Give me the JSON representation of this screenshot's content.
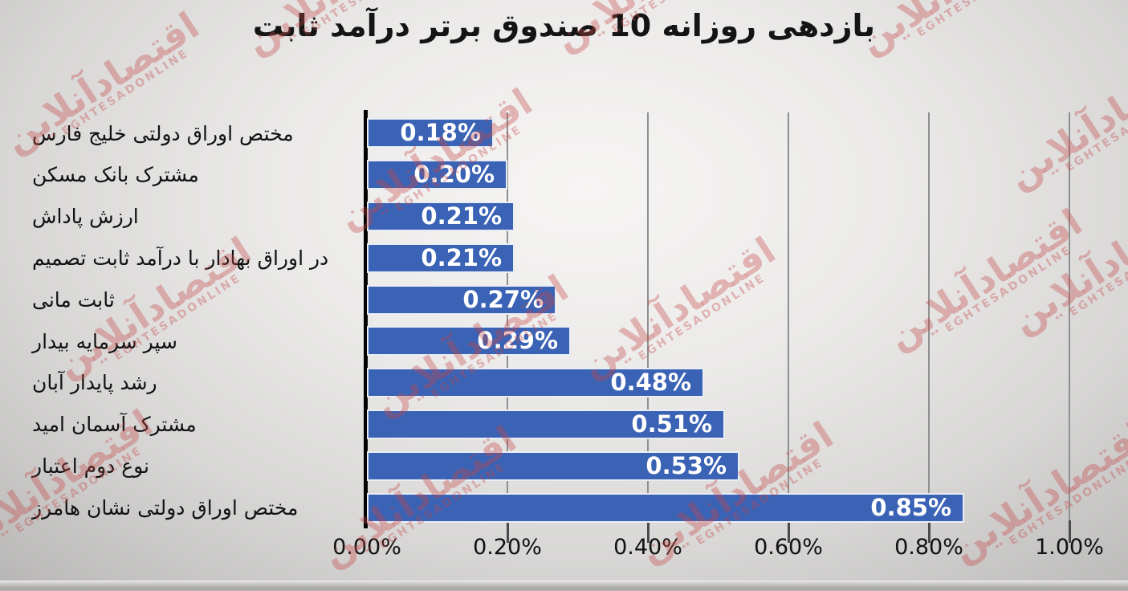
{
  "title": "بازدهی روزانه 10 صندوق برتر درآمد ثابت",
  "watermark": {
    "fa": "اقتصادآنلاین",
    "en": "EGHTESADONLINE"
  },
  "colors": {
    "bar": "#3a62b5",
    "bar_border": "#e9edf4",
    "axis": "#000000",
    "gridline": "#8f8f8f",
    "title_text": "#141414",
    "value_text": "#ffffff",
    "watermark": "#c64848"
  },
  "chart_data": {
    "type": "bar",
    "orientation": "horizontal",
    "title": "بازدهی روزانه 10 صندوق برتر درآمد ثابت",
    "categories": [
      "مختص اوراق دولتی خلیج فارس",
      "مشترک بانک مسکن",
      "ارزش پاداش",
      "در اوراق بهادار با درآمد ثابت تصمیم",
      "ثابت مانی",
      "سپر سرمایه بیدار",
      "رشد پایدار آبان",
      "مشترک آسمان امید",
      "نوع دوم اعتبار",
      "مختص اوراق دولتی نشان هامرز"
    ],
    "values": [
      0.18,
      0.2,
      0.21,
      0.21,
      0.27,
      0.29,
      0.48,
      0.51,
      0.53,
      0.85
    ],
    "value_labels": [
      "0.18%",
      "0.20%",
      "0.21%",
      "0.21%",
      "0.27%",
      "0.29%",
      "0.48%",
      "0.51%",
      "0.53%",
      "0.85%"
    ],
    "xlabel": "",
    "ylabel": "",
    "xlim": [
      0,
      1.0
    ],
    "x_ticks": [
      0.0,
      0.2,
      0.4,
      0.6,
      0.8,
      1.0
    ],
    "x_tick_labels": [
      "0.00%",
      "0.20%",
      "0.40%",
      "0.60%",
      "0.80%",
      "1.00%"
    ],
    "grid": true,
    "legend": false,
    "data_labels": "inside-end"
  }
}
